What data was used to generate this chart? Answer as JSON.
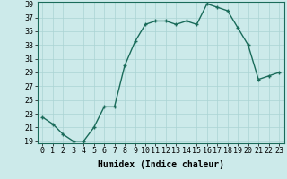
{
  "xlabel": "Humidex (Indice chaleur)",
  "x_values": [
    0,
    1,
    2,
    3,
    4,
    5,
    6,
    7,
    8,
    9,
    10,
    11,
    12,
    13,
    14,
    15,
    16,
    17,
    18,
    19,
    20,
    21,
    22,
    23
  ],
  "y_values": [
    22.5,
    21.5,
    20,
    19,
    19,
    21,
    24,
    24,
    30,
    33.5,
    36,
    36.5,
    36.5,
    36,
    36.5,
    36,
    39,
    38.5,
    38,
    35.5,
    33,
    28,
    28.5,
    29
  ],
  "y_min": 19,
  "y_max": 39,
  "y_ticks": [
    19,
    21,
    23,
    25,
    27,
    29,
    31,
    33,
    35,
    37,
    39
  ],
  "line_color": "#1a6b5a",
  "marker": "+",
  "marker_size": 3,
  "marker_lw": 1.0,
  "line_width": 1.0,
  "bg_color": "#cceaea",
  "grid_color": "#aad4d4",
  "xlabel_fontsize": 7,
  "tick_fontsize": 6
}
